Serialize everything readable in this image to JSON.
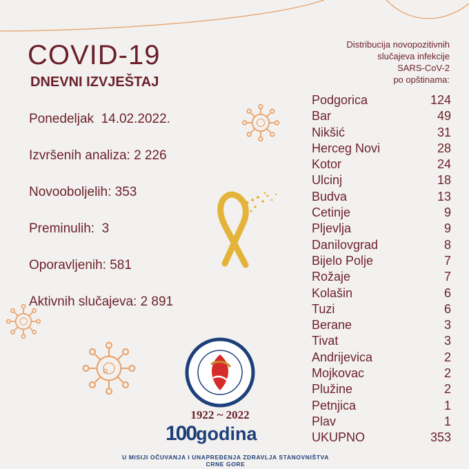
{
  "title": "COVID-19",
  "subtitle": "DNEVNI IZVJEŠTAJ",
  "stats": [
    {
      "text": "Ponedeljak  14.02.2022."
    },
    {
      "text": "Izvršenih analiza: 2 226"
    },
    {
      "text": "Novooboljelih: 353"
    },
    {
      "text": "Preminulih:  3"
    },
    {
      "text": "Oporavljenih: 581"
    },
    {
      "text": "Aktivnih slučajeva: 2 891"
    }
  ],
  "distribution_header": [
    "Distribucija novopozitivnih",
    "slučajeva infekcije",
    "SARS-CoV-2",
    "po opštinama:"
  ],
  "municipalities": [
    {
      "name": "Podgorica",
      "count": "124"
    },
    {
      "name": "Bar",
      "count": "49"
    },
    {
      "name": "Nikšić",
      "count": "31"
    },
    {
      "name": "Herceg Novi",
      "count": "28"
    },
    {
      "name": "Kotor",
      "count": "24"
    },
    {
      "name": "Ulcinj",
      "count": "18"
    },
    {
      "name": "Budva",
      "count": "13"
    },
    {
      "name": "Cetinje",
      "count": "9"
    },
    {
      "name": "Pljevlja",
      "count": "9"
    },
    {
      "name": "Danilovgrad",
      "count": "8"
    },
    {
      "name": "Bijelo Polje",
      "count": "7"
    },
    {
      "name": "Rožaje",
      "count": "7"
    },
    {
      "name": "Kolašin",
      "count": "6"
    },
    {
      "name": "Tuzi",
      "count": "6"
    },
    {
      "name": "Berane",
      "count": "3"
    },
    {
      "name": "Tivat",
      "count": "3"
    },
    {
      "name": "Andrijevica",
      "count": "2"
    },
    {
      "name": "Mojkovac",
      "count": "2"
    },
    {
      "name": "Plužine",
      "count": "2"
    },
    {
      "name": "Petnjica",
      "count": "1"
    },
    {
      "name": "Plav",
      "count": "1"
    },
    {
      "name": "UKUPNO",
      "count": "353"
    }
  ],
  "logo": {
    "ring_text": "INSTITUT ZA JAVNO ZDRAVLJE CRNE GORE",
    "years": "1922 ~ 2022",
    "hundred": "100",
    "godina": "godina",
    "motto": "U MISIJI OČUVANJA I UNAPREĐENJA ZDRAVLJA STANOVNIŠTVA CRNE GORE"
  },
  "colors": {
    "text": "#6b1f2a",
    "accent": "#e8a36c",
    "ribbon": "#e4b43a",
    "logo_blue": "#1d3f7a",
    "logo_red": "#d62b2b",
    "background": "#f3f1ef"
  },
  "icons": [
    "virus-icon",
    "awareness-ribbon-icon",
    "institute-logo"
  ]
}
